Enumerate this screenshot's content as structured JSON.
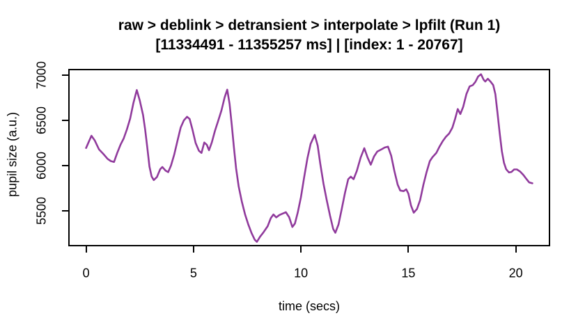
{
  "figure": {
    "background_color": "#FFFFFF",
    "text_color": "#000000",
    "axis_color": "#000000"
  },
  "chart_data": {
    "type": "line",
    "title_lines": [
      "raw > deblink > detransient > interpolate > lpfilt (Run 1)",
      "[11334491 - 11355257 ms] | [index: 1 - 20767]"
    ],
    "xlabel": "time (secs)",
    "ylabel": "pupil size (a.u.)",
    "x_ticks": [
      0,
      5,
      10,
      15,
      20
    ],
    "y_ticks": [
      5500,
      6000,
      6500,
      7000
    ],
    "xlim": [
      -0.83,
      21.6
    ],
    "ylim": [
      5108,
      7069
    ],
    "grid": false,
    "legend": "none",
    "line_color": "#903A9C",
    "series": [
      {
        "name": "pupil size (a.u.)",
        "x": [
          0,
          0.12,
          0.25,
          0.4,
          0.6,
          0.8,
          1.0,
          1.15,
          1.3,
          1.45,
          1.6,
          1.75,
          1.9,
          2.05,
          2.2,
          2.36,
          2.5,
          2.65,
          2.75,
          2.85,
          2.95,
          3.05,
          3.15,
          3.3,
          3.45,
          3.55,
          3.7,
          3.82,
          3.95,
          4.1,
          4.25,
          4.4,
          4.55,
          4.7,
          4.82,
          4.95,
          5.1,
          5.25,
          5.37,
          5.5,
          5.62,
          5.72,
          5.85,
          6.0,
          6.15,
          6.3,
          6.45,
          6.57,
          6.68,
          6.78,
          6.88,
          6.98,
          7.1,
          7.25,
          7.4,
          7.55,
          7.7,
          7.85,
          7.95,
          8.1,
          8.25,
          8.45,
          8.6,
          8.72,
          8.85,
          9.0,
          9.15,
          9.3,
          9.45,
          9.6,
          9.72,
          9.85,
          10.0,
          10.15,
          10.3,
          10.45,
          10.64,
          10.78,
          10.9,
          11.05,
          11.2,
          11.35,
          11.5,
          11.6,
          11.75,
          11.9,
          12.05,
          12.2,
          12.32,
          12.45,
          12.6,
          12.78,
          12.95,
          13.1,
          13.25,
          13.4,
          13.55,
          13.75,
          13.9,
          14.05,
          14.2,
          14.35,
          14.5,
          14.62,
          14.78,
          14.9,
          15.0,
          15.12,
          15.25,
          15.4,
          15.55,
          15.7,
          15.85,
          16.0,
          16.12,
          16.3,
          16.45,
          16.6,
          16.75,
          16.9,
          17.05,
          17.18,
          17.3,
          17.42,
          17.55,
          17.7,
          17.85,
          18.0,
          18.12,
          18.25,
          18.38,
          18.5,
          18.58,
          18.7,
          18.82,
          18.95,
          19.05,
          19.15,
          19.25,
          19.35,
          19.45,
          19.55,
          19.68,
          19.8,
          19.92,
          20.05,
          20.2,
          20.35,
          20.5,
          20.62,
          20.77
        ],
        "y": [
          6195,
          6260,
          6330,
          6280,
          6180,
          6130,
          6075,
          6050,
          6040,
          6140,
          6230,
          6300,
          6400,
          6520,
          6690,
          6835,
          6720,
          6560,
          6400,
          6200,
          5990,
          5880,
          5840,
          5875,
          5960,
          5985,
          5945,
          5928,
          6000,
          6120,
          6270,
          6420,
          6500,
          6540,
          6515,
          6400,
          6250,
          6165,
          6140,
          6255,
          6230,
          6170,
          6255,
          6385,
          6495,
          6610,
          6755,
          6840,
          6680,
          6450,
          6200,
          5970,
          5770,
          5600,
          5460,
          5350,
          5255,
          5180,
          5158,
          5215,
          5260,
          5330,
          5420,
          5460,
          5428,
          5455,
          5470,
          5485,
          5430,
          5322,
          5360,
          5480,
          5650,
          5870,
          6080,
          6240,
          6340,
          6220,
          6020,
          5800,
          5620,
          5450,
          5300,
          5258,
          5350,
          5520,
          5700,
          5850,
          5878,
          5850,
          5940,
          6090,
          6192,
          6090,
          6010,
          6100,
          6155,
          6180,
          6200,
          6210,
          6110,
          5940,
          5790,
          5725,
          5718,
          5738,
          5690,
          5560,
          5480,
          5520,
          5620,
          5790,
          5930,
          6050,
          6092,
          6140,
          6210,
          6270,
          6320,
          6355,
          6420,
          6520,
          6625,
          6570,
          6650,
          6790,
          6875,
          6890,
          6925,
          6985,
          7010,
          6950,
          6930,
          6960,
          6930,
          6890,
          6790,
          6580,
          6360,
          6160,
          6030,
          5960,
          5925,
          5930,
          5958,
          5958,
          5935,
          5898,
          5850,
          5815,
          5805
        ]
      }
    ]
  }
}
